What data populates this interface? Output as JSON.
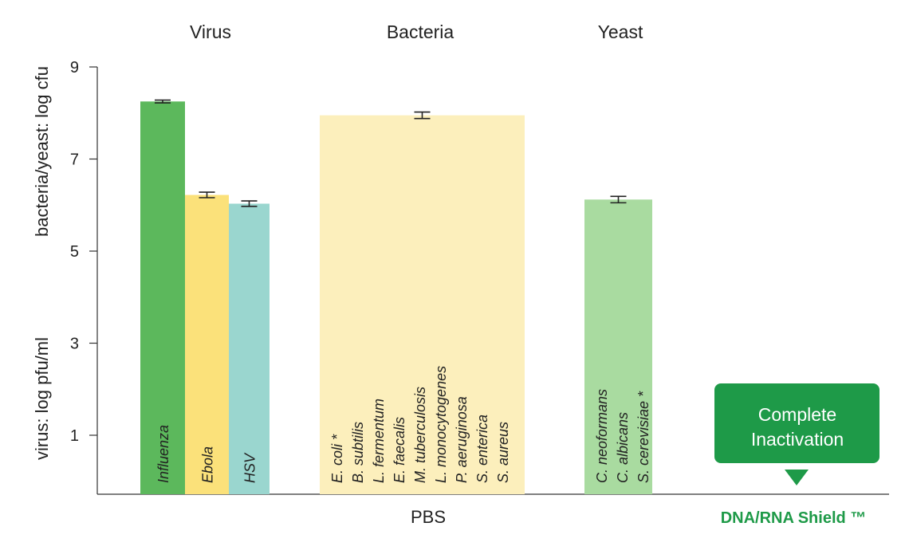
{
  "chart_data": {
    "type": "bar",
    "ylabel_lines": [
      "bacteria/yeast: log cfu",
      "virus: log pfu/ml"
    ],
    "yticks": [
      1,
      3,
      5,
      7,
      9
    ],
    "ylim": [
      -0.3,
      9
    ],
    "groups": [
      {
        "label": "Virus"
      },
      {
        "label": "Bacteria"
      },
      {
        "label": "Yeast"
      }
    ],
    "bars": [
      {
        "group": "Virus",
        "value": 8.25,
        "error": 0.03,
        "color": "#5cb85c",
        "organisms": [
          "Influenza"
        ]
      },
      {
        "group": "Virus",
        "value": 6.22,
        "error": 0.06,
        "color": "#fbe17a",
        "organisms": [
          "Ebola"
        ]
      },
      {
        "group": "Virus",
        "value": 6.03,
        "error": 0.06,
        "color": "#9ad6cf",
        "organisms": [
          "HSV"
        ]
      },
      {
        "group": "Bacteria",
        "value": 7.95,
        "error": 0.07,
        "color": "#fcefbc",
        "organisms": [
          "E. coli *",
          "B. subtilis",
          "L. fermentum",
          "E. faecalis",
          "M. tuberculosis",
          "L. monocytogenes",
          "P. aeruginosa",
          "S. enterica",
          "S. aureus"
        ]
      },
      {
        "group": "Yeast",
        "value": 6.12,
        "error": 0.07,
        "color": "#a9dba0",
        "organisms": [
          "C. neoformans",
          "C. albicans",
          "S. cerevisiae *"
        ]
      }
    ],
    "categories": [
      "PBS",
      "DNA/RNA Shield ™"
    ],
    "annotation": {
      "lines": [
        "Complete",
        "Inactivation"
      ],
      "color": "#1e9a48"
    },
    "category_colors": {
      "pbs": "#222222",
      "shield": "#1e9a48"
    }
  }
}
